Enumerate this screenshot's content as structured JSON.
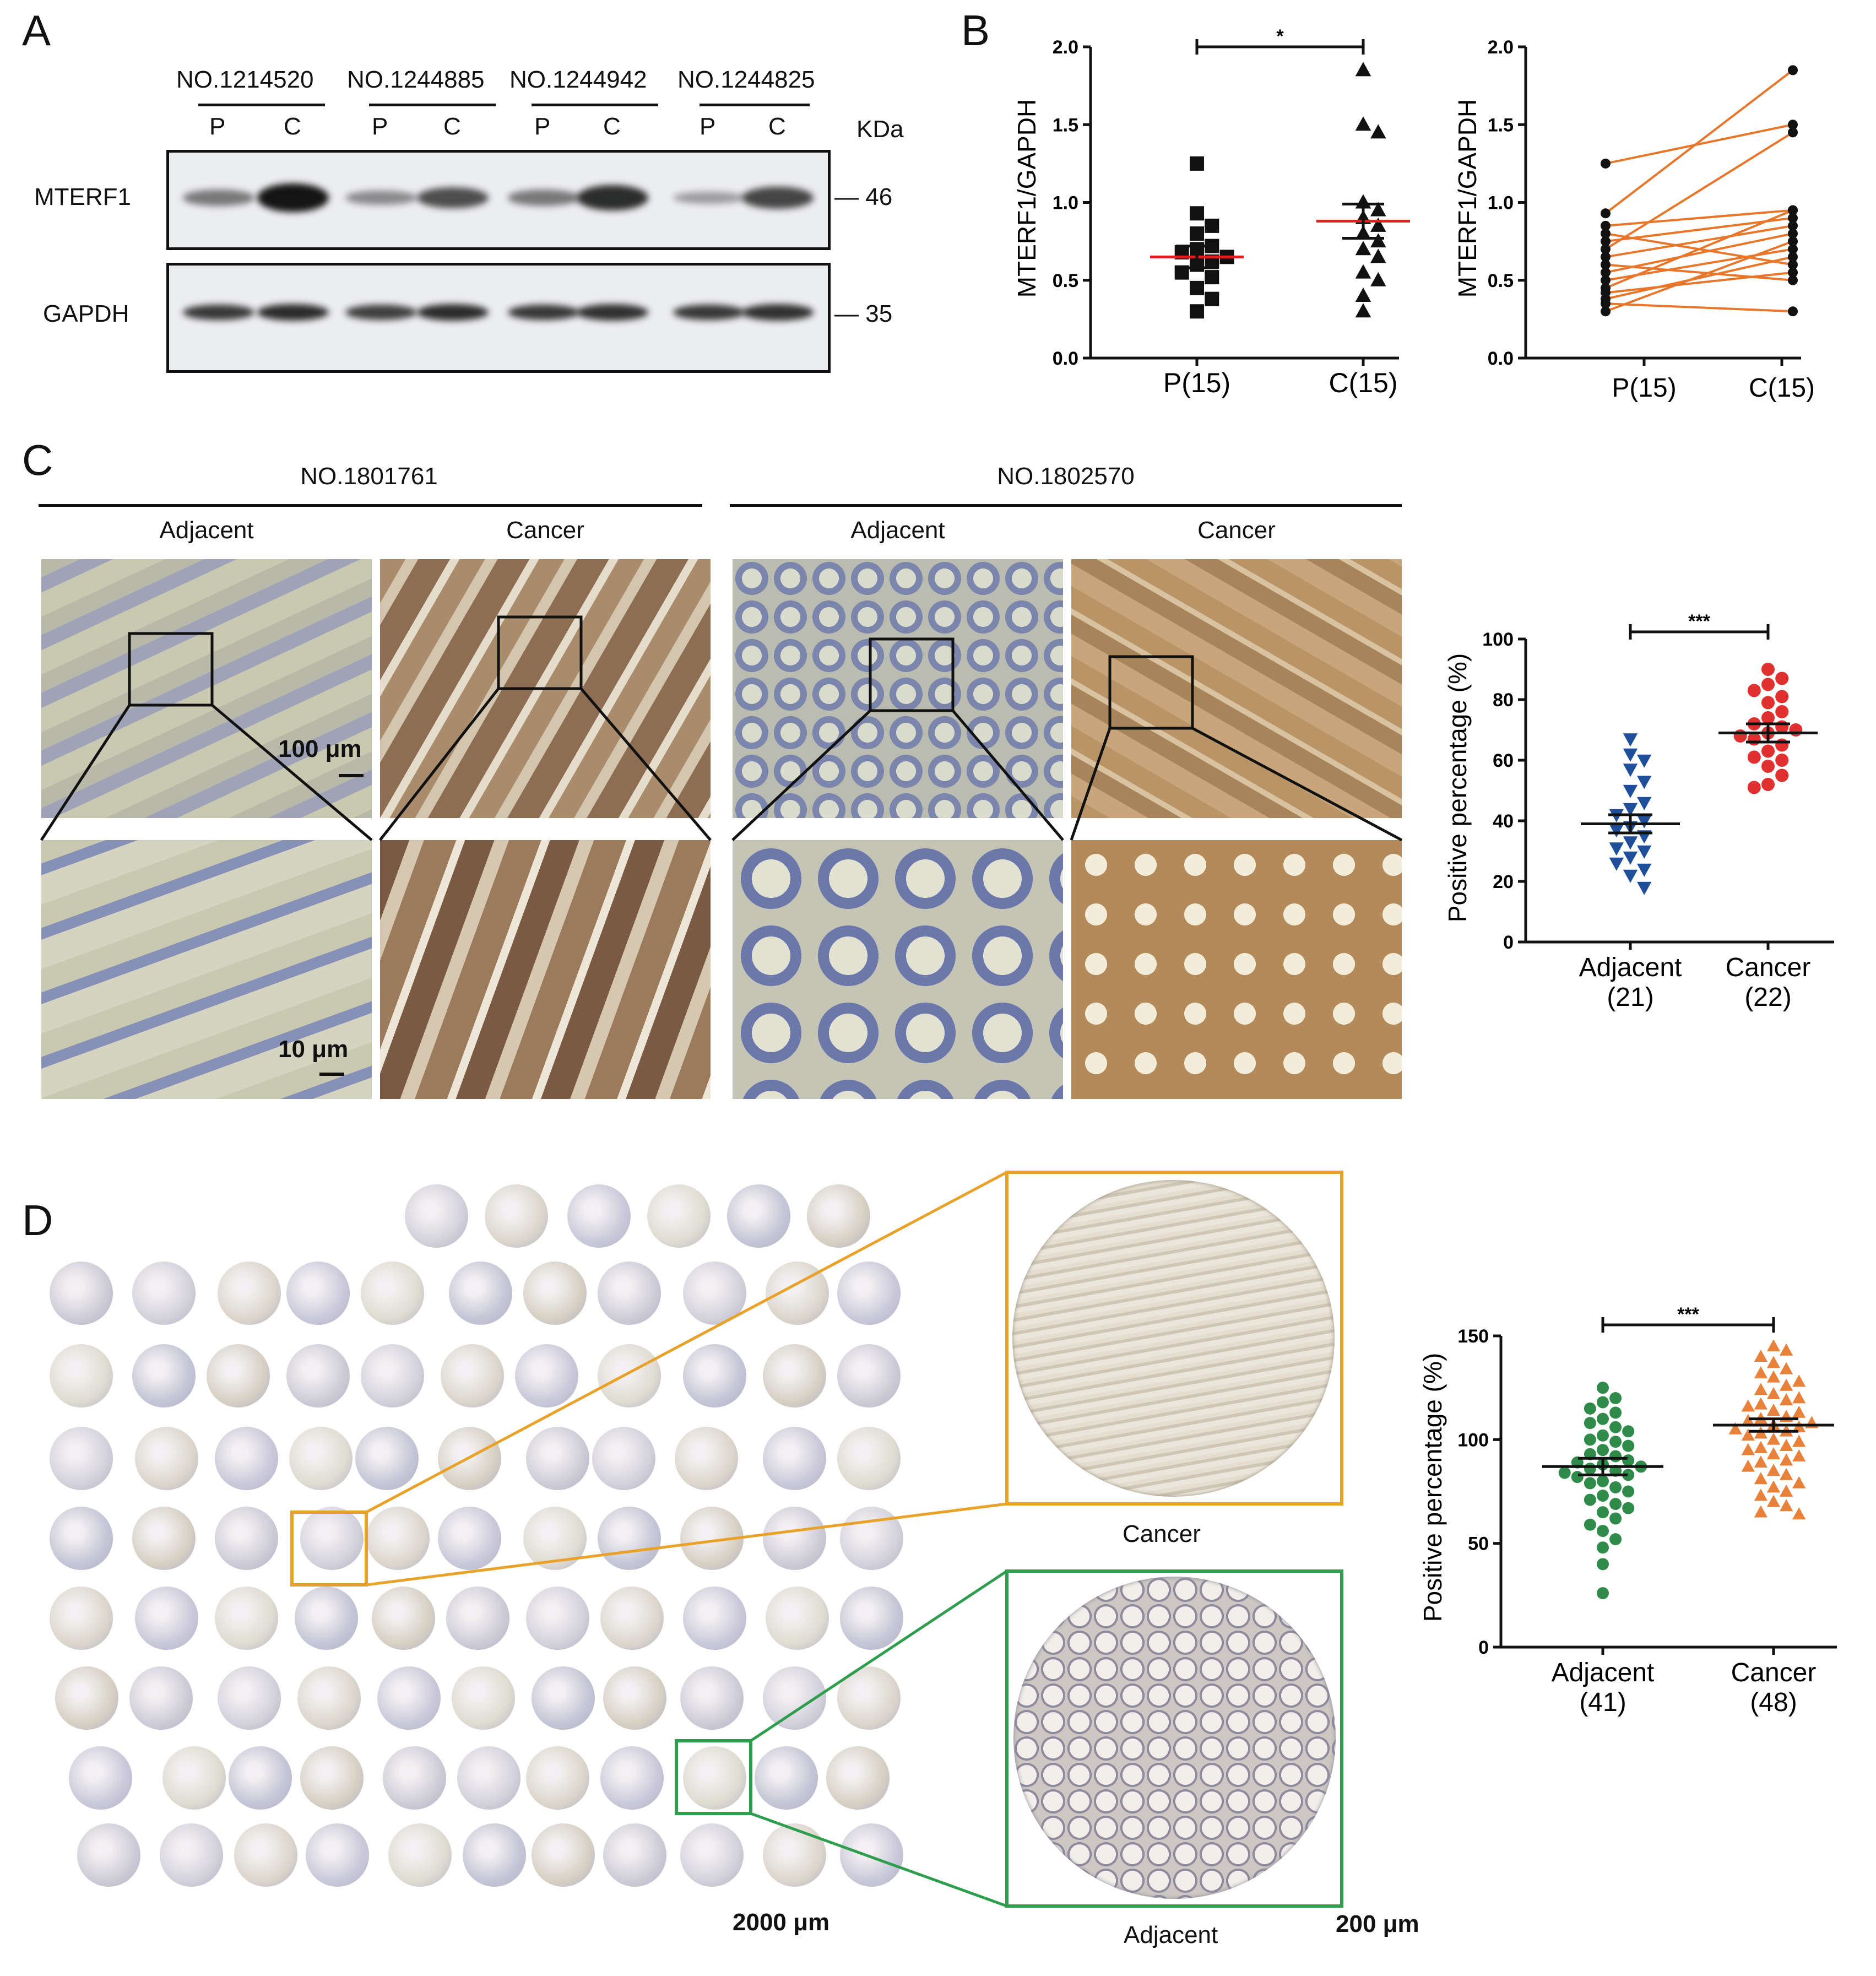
{
  "panels": {
    "A": {
      "letter": "A",
      "samples": [
        "NO.1214520",
        "NO.1244885",
        "NO.1244942",
        "NO.1244825"
      ],
      "lane_labels": [
        "P",
        "C",
        "P",
        "C",
        "P",
        "C",
        "P",
        "C"
      ],
      "kda_label": "KDa",
      "proteins": [
        "MTERF1",
        "GAPDH"
      ],
      "markers": [
        "— 46",
        "— 35"
      ],
      "band_intensity_mterf1": [
        0.35,
        0.95,
        0.25,
        0.6,
        0.35,
        0.8,
        0.15,
        0.65
      ],
      "band_intensity_gapdh": [
        0.75,
        0.85,
        0.7,
        0.85,
        0.75,
        0.8,
        0.75,
        0.8
      ]
    },
    "B": {
      "letter": "B",
      "sig_left": "*",
      "scatter_title": "",
      "paired_title": ""
    },
    "C": {
      "letter": "C",
      "cases": [
        "NO.1801761",
        "NO.1802570"
      ],
      "tissue_labels": [
        "Adjacent",
        "Cancer",
        "Adjacent",
        "Cancer"
      ],
      "scale_top": "100 μm",
      "scale_bottom": "10 μm",
      "sig": "***"
    },
    "D": {
      "letter": "D",
      "inset_top_label": "Cancer",
      "inset_bottom_label": "Adjacent",
      "scale_tma": "2000 μm",
      "scale_inset": "200 μm",
      "sig": "***",
      "inset_top_color": "#e8a22a",
      "inset_bottom_color": "#2e9e4e"
    }
  },
  "chart_data": [
    {
      "id": "B-scatter",
      "type": "scatter",
      "ylabel": "MTERF1/GAPDH",
      "categories": [
        "P(15)",
        "C(15)"
      ],
      "ylim": [
        0,
        2.0
      ],
      "yticks": [
        "0.0",
        "0.5",
        "1.0",
        "1.5",
        "2.0"
      ],
      "series": [
        {
          "category": "P(15)",
          "marker": "square",
          "color": "#111111",
          "values": [
            1.25,
            0.93,
            0.85,
            0.8,
            0.72,
            0.7,
            0.68,
            0.65,
            0.62,
            0.6,
            0.55,
            0.52,
            0.45,
            0.38,
            0.3
          ],
          "mean": 0.65,
          "sem_low": 0.58,
          "sem_high": 0.72,
          "mean_color": "#e02020"
        },
        {
          "category": "C(15)",
          "marker": "triangle",
          "color": "#111111",
          "values": [
            1.85,
            1.5,
            1.45,
            1.0,
            0.95,
            0.9,
            0.85,
            0.8,
            0.75,
            0.7,
            0.65,
            0.55,
            0.5,
            0.4,
            0.3
          ],
          "mean": 0.88,
          "sem_low": 0.77,
          "sem_high": 0.99,
          "mean_color": "#e02020"
        }
      ],
      "significance": "*"
    },
    {
      "id": "B-paired",
      "type": "line",
      "ylabel": "MTERF1/GAPDH",
      "categories": [
        "P(15)",
        "C(15)"
      ],
      "ylim": [
        0,
        2.0
      ],
      "yticks": [
        "0.0",
        "0.5",
        "1.0",
        "1.5",
        "2.0"
      ],
      "line_color": "#e8762a",
      "pairs": [
        [
          1.25,
          1.5
        ],
        [
          0.93,
          1.85
        ],
        [
          0.85,
          0.95
        ],
        [
          0.8,
          0.6
        ],
        [
          0.75,
          0.9
        ],
        [
          0.7,
          1.45
        ],
        [
          0.65,
          0.85
        ],
        [
          0.6,
          0.5
        ],
        [
          0.55,
          0.8
        ],
        [
          0.5,
          0.7
        ],
        [
          0.45,
          0.95
        ],
        [
          0.42,
          0.55
        ],
        [
          0.38,
          0.65
        ],
        [
          0.35,
          0.3
        ],
        [
          0.3,
          0.75
        ]
      ]
    },
    {
      "id": "C-scatter",
      "type": "scatter",
      "ylabel": "Positive percentage (%)",
      "categories": [
        "Adjacent\n(21)",
        "Cancer\n(22)"
      ],
      "category_lines": [
        [
          "Adjacent",
          "(21)"
        ],
        [
          "Cancer",
          "(22)"
        ]
      ],
      "ylim": [
        0,
        100
      ],
      "yticks": [
        "0",
        "20",
        "40",
        "60",
        "80",
        "100"
      ],
      "series": [
        {
          "category": "Adjacent",
          "marker": "triangle-down",
          "color": "#1f4e9a",
          "values": [
            67,
            62,
            60,
            57,
            53,
            50,
            46,
            44,
            42,
            40,
            38,
            37,
            35,
            33,
            31,
            30,
            28,
            26,
            24,
            22,
            18
          ],
          "mean": 39,
          "sem_low": 36,
          "sem_high": 42
        },
        {
          "category": "Cancer",
          "marker": "circle",
          "color": "#e03030",
          "values": [
            90,
            87,
            85,
            83,
            81,
            79,
            76,
            74,
            72,
            71,
            70,
            69,
            68,
            67,
            65,
            63,
            61,
            60,
            58,
            55,
            52,
            51
          ],
          "mean": 69,
          "sem_low": 66,
          "sem_high": 72
        }
      ],
      "significance": "***"
    },
    {
      "id": "D-scatter",
      "type": "scatter",
      "ylabel": "Positive percentage (%)",
      "categories": [
        "Adjacent\n(41)",
        "Cancer\n(48)"
      ],
      "category_lines": [
        [
          "Adjacent",
          "(41)"
        ],
        [
          "Cancer",
          "(48)"
        ]
      ],
      "ylim": [
        0,
        150
      ],
      "yticks": [
        "0",
        "50",
        "100",
        "150"
      ],
      "series": [
        {
          "category": "Adjacent",
          "marker": "circle",
          "color": "#2e8b4a",
          "values": [
            125,
            120,
            118,
            115,
            113,
            110,
            108,
            106,
            104,
            102,
            100,
            99,
            97,
            95,
            93,
            92,
            90,
            89,
            88,
            87,
            86,
            85,
            84,
            83,
            82,
            80,
            79,
            77,
            75,
            73,
            71,
            69,
            67,
            65,
            62,
            59,
            56,
            52,
            48,
            40,
            26
          ],
          "mean": 87,
          "sem_low": 83,
          "sem_high": 91
        },
        {
          "category": "Cancer",
          "marker": "triangle",
          "color": "#e8823a",
          "values": [
            145,
            143,
            140,
            137,
            134,
            132,
            130,
            128,
            126,
            124,
            122,
            120,
            119,
            117,
            116,
            114,
            113,
            111,
            110,
            109,
            108,
            107,
            106,
            105,
            104,
            103,
            102,
            100,
            99,
            97,
            96,
            95,
            93,
            92,
            90,
            89,
            87,
            85,
            83,
            81,
            79,
            77,
            75,
            73,
            70,
            68,
            65,
            64
          ],
          "mean": 107,
          "sem_low": 104,
          "sem_high": 110
        }
      ],
      "significance": "***"
    }
  ]
}
